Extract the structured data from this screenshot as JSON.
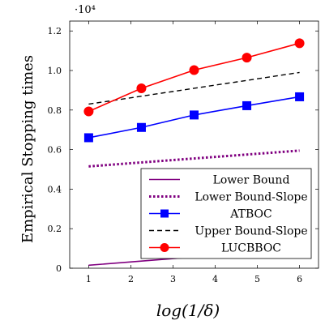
{
  "chart_data": {
    "type": "line",
    "ylabel": "Empirical Stopping times",
    "xlabel": "log(1/δ)",
    "y_multiplier": "·10⁴",
    "xlim": [
      0.55,
      6.45
    ],
    "ylim": [
      0,
      1.25
    ],
    "xticks": [
      1,
      2,
      3,
      4,
      5,
      6
    ],
    "yticks": [
      0,
      0.2,
      0.4,
      0.6,
      0.8,
      1.0,
      1.2
    ],
    "ytick_labels": [
      "0",
      "0.2",
      "0.4",
      "0.6",
      "0.8",
      "1.0",
      "1.2"
    ],
    "grid": false,
    "legend_position": "bottom-right",
    "series": [
      {
        "name": "Lower Bound",
        "color": "#800080",
        "style": "solid",
        "marker": "none",
        "x": [
          1,
          2.25,
          3.5,
          4.75,
          6
        ],
        "y": [
          0.015,
          0.036,
          0.057,
          0.079,
          0.1
        ]
      },
      {
        "name": "Lower Bound-Slope",
        "color": "#800080",
        "style": "dotted",
        "marker": "none",
        "x": [
          1,
          2.25,
          3.5,
          4.75,
          6
        ],
        "y": [
          0.515,
          0.535,
          0.555,
          0.575,
          0.595
        ]
      },
      {
        "name": "ATBOC",
        "color": "#0000ff",
        "style": "solid",
        "marker": "square",
        "x": [
          1,
          2.25,
          3.5,
          4.75,
          6
        ],
        "y": [
          0.66,
          0.712,
          0.775,
          0.822,
          0.867
        ]
      },
      {
        "name": "Upper Bound-Slope",
        "color": "#000000",
        "style": "dashed",
        "marker": "none",
        "x": [
          1,
          2.25,
          3.5,
          4.75,
          6
        ],
        "y": [
          0.83,
          0.87,
          0.91,
          0.95,
          0.99
        ]
      },
      {
        "name": "LUCBBOC",
        "color": "#ff0000",
        "style": "solid",
        "marker": "circle",
        "x": [
          1,
          2.25,
          3.5,
          4.75,
          6
        ],
        "y": [
          0.793,
          0.91,
          1.002,
          1.065,
          1.138
        ]
      }
    ]
  }
}
